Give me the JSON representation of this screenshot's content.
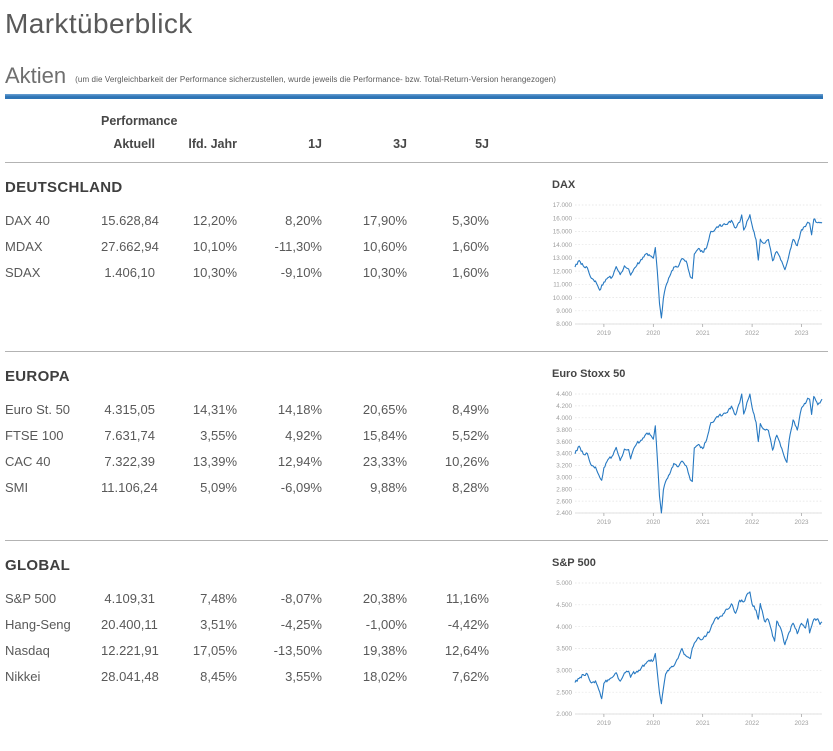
{
  "header": {
    "title": "Marktüberblick",
    "section_label": "Aktien",
    "note": "(um die Vergleichbarkeit der Performance sicherzustellen, wurde jeweils die Performance- bzw. Total-Return-Version herangezogen)"
  },
  "table": {
    "performance_label": "Performance",
    "columns": [
      "Aktuell",
      "lfd. Jahr",
      "1J",
      "3J",
      "5J"
    ]
  },
  "sections": [
    {
      "heading": "DEUTSCHLAND",
      "chart": "dax",
      "rows": [
        {
          "name": "DAX 40",
          "values": [
            "15.628,84",
            "12,20%",
            "8,20%",
            "17,90%",
            "5,30%"
          ]
        },
        {
          "name": "MDAX",
          "values": [
            "27.662,94",
            "10,10%",
            "-11,30%",
            "10,60%",
            "1,60%"
          ]
        },
        {
          "name": "SDAX",
          "values": [
            "1.406,10",
            "10,30%",
            "-9,10%",
            "10,30%",
            "1,60%"
          ]
        }
      ]
    },
    {
      "heading": "EUROPA",
      "chart": "eurostoxx50",
      "rows": [
        {
          "name": "Euro St. 50",
          "values": [
            "4.315,05",
            "14,31%",
            "14,18%",
            "20,65%",
            "8,49%"
          ]
        },
        {
          "name": "FTSE 100",
          "values": [
            "7.631,74",
            "3,55%",
            "4,92%",
            "15,84%",
            "5,52%"
          ]
        },
        {
          "name": "CAC 40",
          "values": [
            "7.322,39",
            "13,39%",
            "12,94%",
            "23,33%",
            "10,26%"
          ]
        },
        {
          "name": "SMI",
          "values": [
            "11.106,24",
            "5,09%",
            "-6,09%",
            "9,88%",
            "8,28%"
          ]
        }
      ]
    },
    {
      "heading": "GLOBAL",
      "chart": "sp500",
      "rows": [
        {
          "name": "S&P 500",
          "values": [
            "4.109,31",
            "7,48%",
            "-8,07%",
            "20,38%",
            "11,16%"
          ]
        },
        {
          "name": "Hang-Seng",
          "values": [
            "20.400,11",
            "3,51%",
            "-4,25%",
            "-1,00%",
            "-4,42%"
          ]
        },
        {
          "name": "Nasdaq",
          "values": [
            "12.221,91",
            "17,05%",
            "-13,50%",
            "19,38%",
            "12,64%"
          ]
        },
        {
          "name": "Nikkei",
          "values": [
            "28.041,48",
            "8,45%",
            "3,55%",
            "18,02%",
            "7,62%"
          ]
        }
      ]
    }
  ],
  "chart_data": [
    {
      "type": "line",
      "key": "dax",
      "title": "DAX",
      "xlabel": "",
      "ylabel": "",
      "ylim": [
        8000,
        17000
      ],
      "grid": true,
      "legend": "none",
      "yticks": [
        [
          17000,
          "17.000"
        ],
        [
          16000,
          "16.000"
        ],
        [
          15000,
          "15.000"
        ],
        [
          14000,
          "14.000"
        ],
        [
          13000,
          "13.000"
        ],
        [
          12000,
          "12.000"
        ],
        [
          11000,
          "11.000"
        ],
        [
          10000,
          "10.000"
        ],
        [
          9000,
          "9.000"
        ],
        [
          8000,
          "8.000"
        ]
      ],
      "xticks": [
        [
          0.117,
          "2019"
        ],
        [
          0.317,
          "2020"
        ],
        [
          0.517,
          "2021"
        ],
        [
          0.717,
          "2022"
        ],
        [
          0.917,
          "2023"
        ]
      ],
      "points": [
        [
          0,
          12300
        ],
        [
          0.017,
          12800
        ],
        [
          0.033,
          12400
        ],
        [
          0.05,
          12250
        ],
        [
          0.067,
          11450
        ],
        [
          0.083,
          11250
        ],
        [
          0.092,
          10900
        ],
        [
          0.1,
          10560
        ],
        [
          0.117,
          11170
        ],
        [
          0.133,
          11510
        ],
        [
          0.15,
          11530
        ],
        [
          0.167,
          12340
        ],
        [
          0.183,
          11730
        ],
        [
          0.2,
          12400
        ],
        [
          0.217,
          12170
        ],
        [
          0.225,
          11690
        ],
        [
          0.233,
          11940
        ],
        [
          0.25,
          12430
        ],
        [
          0.267,
          12870
        ],
        [
          0.283,
          13240
        ],
        [
          0.3,
          13250
        ],
        [
          0.317,
          12980
        ],
        [
          0.325,
          13780
        ],
        [
          0.333,
          12000
        ],
        [
          0.342,
          9550
        ],
        [
          0.35,
          8450
        ],
        [
          0.358,
          9950
        ],
        [
          0.367,
          10800
        ],
        [
          0.383,
          11590
        ],
        [
          0.4,
          12310
        ],
        [
          0.417,
          12310
        ],
        [
          0.433,
          12950
        ],
        [
          0.45,
          12760
        ],
        [
          0.467,
          11560
        ],
        [
          0.475,
          11450
        ],
        [
          0.483,
          13290
        ],
        [
          0.5,
          13720
        ],
        [
          0.517,
          13430
        ],
        [
          0.533,
          13790
        ],
        [
          0.55,
          15010
        ],
        [
          0.567,
          15140
        ],
        [
          0.583,
          15420
        ],
        [
          0.6,
          15530
        ],
        [
          0.617,
          15540
        ],
        [
          0.633,
          15840
        ],
        [
          0.65,
          15260
        ],
        [
          0.667,
          15690
        ],
        [
          0.675,
          16250
        ],
        [
          0.683,
          15100
        ],
        [
          0.7,
          15885
        ],
        [
          0.708,
          16270
        ],
        [
          0.717,
          15470
        ],
        [
          0.733,
          14370
        ],
        [
          0.742,
          12830
        ],
        [
          0.75,
          14410
        ],
        [
          0.767,
          14100
        ],
        [
          0.783,
          14390
        ],
        [
          0.8,
          12780
        ],
        [
          0.817,
          13480
        ],
        [
          0.833,
          12835
        ],
        [
          0.85,
          12110
        ],
        [
          0.867,
          13250
        ],
        [
          0.883,
          14400
        ],
        [
          0.9,
          13920
        ],
        [
          0.917,
          15130
        ],
        [
          0.933,
          15365
        ],
        [
          0.942,
          15700
        ],
        [
          0.95,
          15630
        ],
        [
          0.958,
          14750
        ],
        [
          0.967,
          15920
        ],
        [
          0.983,
          15660
        ],
        [
          1,
          15630
        ]
      ]
    },
    {
      "type": "line",
      "key": "eurostoxx50",
      "title": "Euro Stoxx 50",
      "xlabel": "",
      "ylabel": "",
      "ylim": [
        2400,
        4400
      ],
      "grid": true,
      "legend": "none",
      "yticks": [
        [
          4400,
          "4.400"
        ],
        [
          4200,
          "4.200"
        ],
        [
          4000,
          "4.000"
        ],
        [
          3800,
          "3.800"
        ],
        [
          3600,
          "3.600"
        ],
        [
          3400,
          "3.400"
        ],
        [
          3200,
          "3.200"
        ],
        [
          3000,
          "3.000"
        ],
        [
          2800,
          "2.800"
        ],
        [
          2600,
          "2.600"
        ],
        [
          2400,
          "2.400"
        ]
      ],
      "xticks": [
        [
          0.117,
          "2019"
        ],
        [
          0.317,
          "2020"
        ],
        [
          0.517,
          "2021"
        ],
        [
          0.717,
          "2022"
        ],
        [
          0.917,
          "2023"
        ]
      ],
      "points": [
        [
          0,
          3395
        ],
        [
          0.017,
          3525
        ],
        [
          0.033,
          3392
        ],
        [
          0.05,
          3399
        ],
        [
          0.067,
          3197
        ],
        [
          0.083,
          3173
        ],
        [
          0.1,
          3001
        ],
        [
          0.108,
          2950
        ],
        [
          0.117,
          3159
        ],
        [
          0.133,
          3298
        ],
        [
          0.15,
          3351
        ],
        [
          0.167,
          3502
        ],
        [
          0.183,
          3280
        ],
        [
          0.2,
          3474
        ],
        [
          0.217,
          3467
        ],
        [
          0.225,
          3310
        ],
        [
          0.233,
          3427
        ],
        [
          0.25,
          3569
        ],
        [
          0.267,
          3624
        ],
        [
          0.283,
          3703
        ],
        [
          0.3,
          3745
        ],
        [
          0.317,
          3640
        ],
        [
          0.325,
          3865
        ],
        [
          0.333,
          3329
        ],
        [
          0.342,
          2680
        ],
        [
          0.35,
          2400
        ],
        [
          0.358,
          2790
        ],
        [
          0.367,
          2927
        ],
        [
          0.383,
          3050
        ],
        [
          0.4,
          3234
        ],
        [
          0.417,
          3174
        ],
        [
          0.433,
          3273
        ],
        [
          0.45,
          3194
        ],
        [
          0.467,
          2958
        ],
        [
          0.475,
          2930
        ],
        [
          0.483,
          3493
        ],
        [
          0.5,
          3553
        ],
        [
          0.517,
          3481
        ],
        [
          0.533,
          3636
        ],
        [
          0.55,
          3919
        ],
        [
          0.567,
          3974
        ],
        [
          0.583,
          4039
        ],
        [
          0.6,
          4064
        ],
        [
          0.617,
          4089
        ],
        [
          0.633,
          4196
        ],
        [
          0.65,
          4048
        ],
        [
          0.667,
          4251
        ],
        [
          0.675,
          4415
        ],
        [
          0.683,
          4063
        ],
        [
          0.7,
          4298
        ],
        [
          0.708,
          4400
        ],
        [
          0.717,
          4175
        ],
        [
          0.733,
          3924
        ],
        [
          0.742,
          3600
        ],
        [
          0.75,
          3903
        ],
        [
          0.767,
          3803
        ],
        [
          0.783,
          3789
        ],
        [
          0.8,
          3455
        ],
        [
          0.817,
          3708
        ],
        [
          0.833,
          3517
        ],
        [
          0.85,
          3318
        ],
        [
          0.858,
          3250
        ],
        [
          0.867,
          3618
        ],
        [
          0.883,
          3965
        ],
        [
          0.9,
          3794
        ],
        [
          0.917,
          4163
        ],
        [
          0.933,
          4238
        ],
        [
          0.942,
          4330
        ],
        [
          0.95,
          4315
        ],
        [
          0.958,
          4057
        ],
        [
          0.967,
          4359
        ],
        [
          0.983,
          4218
        ],
        [
          1,
          4315
        ]
      ]
    },
    {
      "type": "line",
      "key": "sp500",
      "title": "S&P 500",
      "xlabel": "",
      "ylabel": "",
      "ylim": [
        2000,
        5000
      ],
      "grid": true,
      "legend": "none",
      "yticks": [
        [
          5000,
          "5.000"
        ],
        [
          4500,
          "4.500"
        ],
        [
          4000,
          "4.000"
        ],
        [
          3500,
          "3.500"
        ],
        [
          3000,
          "3.000"
        ],
        [
          2500,
          "2.500"
        ],
        [
          2000,
          "2.000"
        ]
      ],
      "xticks": [
        [
          0.117,
          "2019"
        ],
        [
          0.317,
          "2020"
        ],
        [
          0.517,
          "2021"
        ],
        [
          0.717,
          "2022"
        ],
        [
          0.917,
          "2023"
        ]
      ],
      "points": [
        [
          0,
          2718
        ],
        [
          0.017,
          2816
        ],
        [
          0.033,
          2902
        ],
        [
          0.05,
          2914
        ],
        [
          0.067,
          2712
        ],
        [
          0.083,
          2760
        ],
        [
          0.092,
          2633
        ],
        [
          0.1,
          2507
        ],
        [
          0.108,
          2351
        ],
        [
          0.117,
          2704
        ],
        [
          0.133,
          2784
        ],
        [
          0.15,
          2834
        ],
        [
          0.167,
          2946
        ],
        [
          0.183,
          2752
        ],
        [
          0.2,
          2942
        ],
        [
          0.217,
          2980
        ],
        [
          0.225,
          2840
        ],
        [
          0.233,
          2926
        ],
        [
          0.25,
          2977
        ],
        [
          0.267,
          3038
        ],
        [
          0.283,
          3141
        ],
        [
          0.3,
          3231
        ],
        [
          0.317,
          3226
        ],
        [
          0.325,
          3386
        ],
        [
          0.333,
          2954
        ],
        [
          0.342,
          2480
        ],
        [
          0.35,
          2237
        ],
        [
          0.358,
          2585
        ],
        [
          0.367,
          2912
        ],
        [
          0.383,
          3044
        ],
        [
          0.4,
          3100
        ],
        [
          0.417,
          3271
        ],
        [
          0.425,
          3397
        ],
        [
          0.433,
          3500
        ],
        [
          0.442,
          3363
        ],
        [
          0.45,
          3327
        ],
        [
          0.467,
          3270
        ],
        [
          0.475,
          3510
        ],
        [
          0.483,
          3622
        ],
        [
          0.5,
          3756
        ],
        [
          0.517,
          3714
        ],
        [
          0.533,
          3811
        ],
        [
          0.55,
          3973
        ],
        [
          0.567,
          4181
        ],
        [
          0.583,
          4204
        ],
        [
          0.6,
          4297
        ],
        [
          0.617,
          4395
        ],
        [
          0.633,
          4523
        ],
        [
          0.65,
          4307
        ],
        [
          0.667,
          4605
        ],
        [
          0.683,
          4567
        ],
        [
          0.7,
          4766
        ],
        [
          0.708,
          4797
        ],
        [
          0.717,
          4516
        ],
        [
          0.733,
          4374
        ],
        [
          0.742,
          4170
        ],
        [
          0.75,
          4530
        ],
        [
          0.767,
          4132
        ],
        [
          0.783,
          4158
        ],
        [
          0.8,
          3785
        ],
        [
          0.808,
          3667
        ],
        [
          0.817,
          4130
        ],
        [
          0.833,
          3955
        ],
        [
          0.85,
          3586
        ],
        [
          0.867,
          3872
        ],
        [
          0.883,
          4080
        ],
        [
          0.9,
          3840
        ],
        [
          0.917,
          4077
        ],
        [
          0.933,
          3970
        ],
        [
          0.942,
          4180
        ],
        [
          0.95,
          3856
        ],
        [
          0.967,
          4169
        ],
        [
          0.983,
          4180
        ],
        [
          0.992,
          4050
        ],
        [
          1,
          4109
        ]
      ]
    }
  ],
  "colors": {
    "accent_blue": "#2e74b5",
    "chart_line": "#2779c2",
    "grid_line": "#e3e3e3",
    "axis_label": "#9d9d9d",
    "heading_text": "#3f3f3f",
    "body_text": "#595959",
    "divider": "#b3b3b3"
  }
}
